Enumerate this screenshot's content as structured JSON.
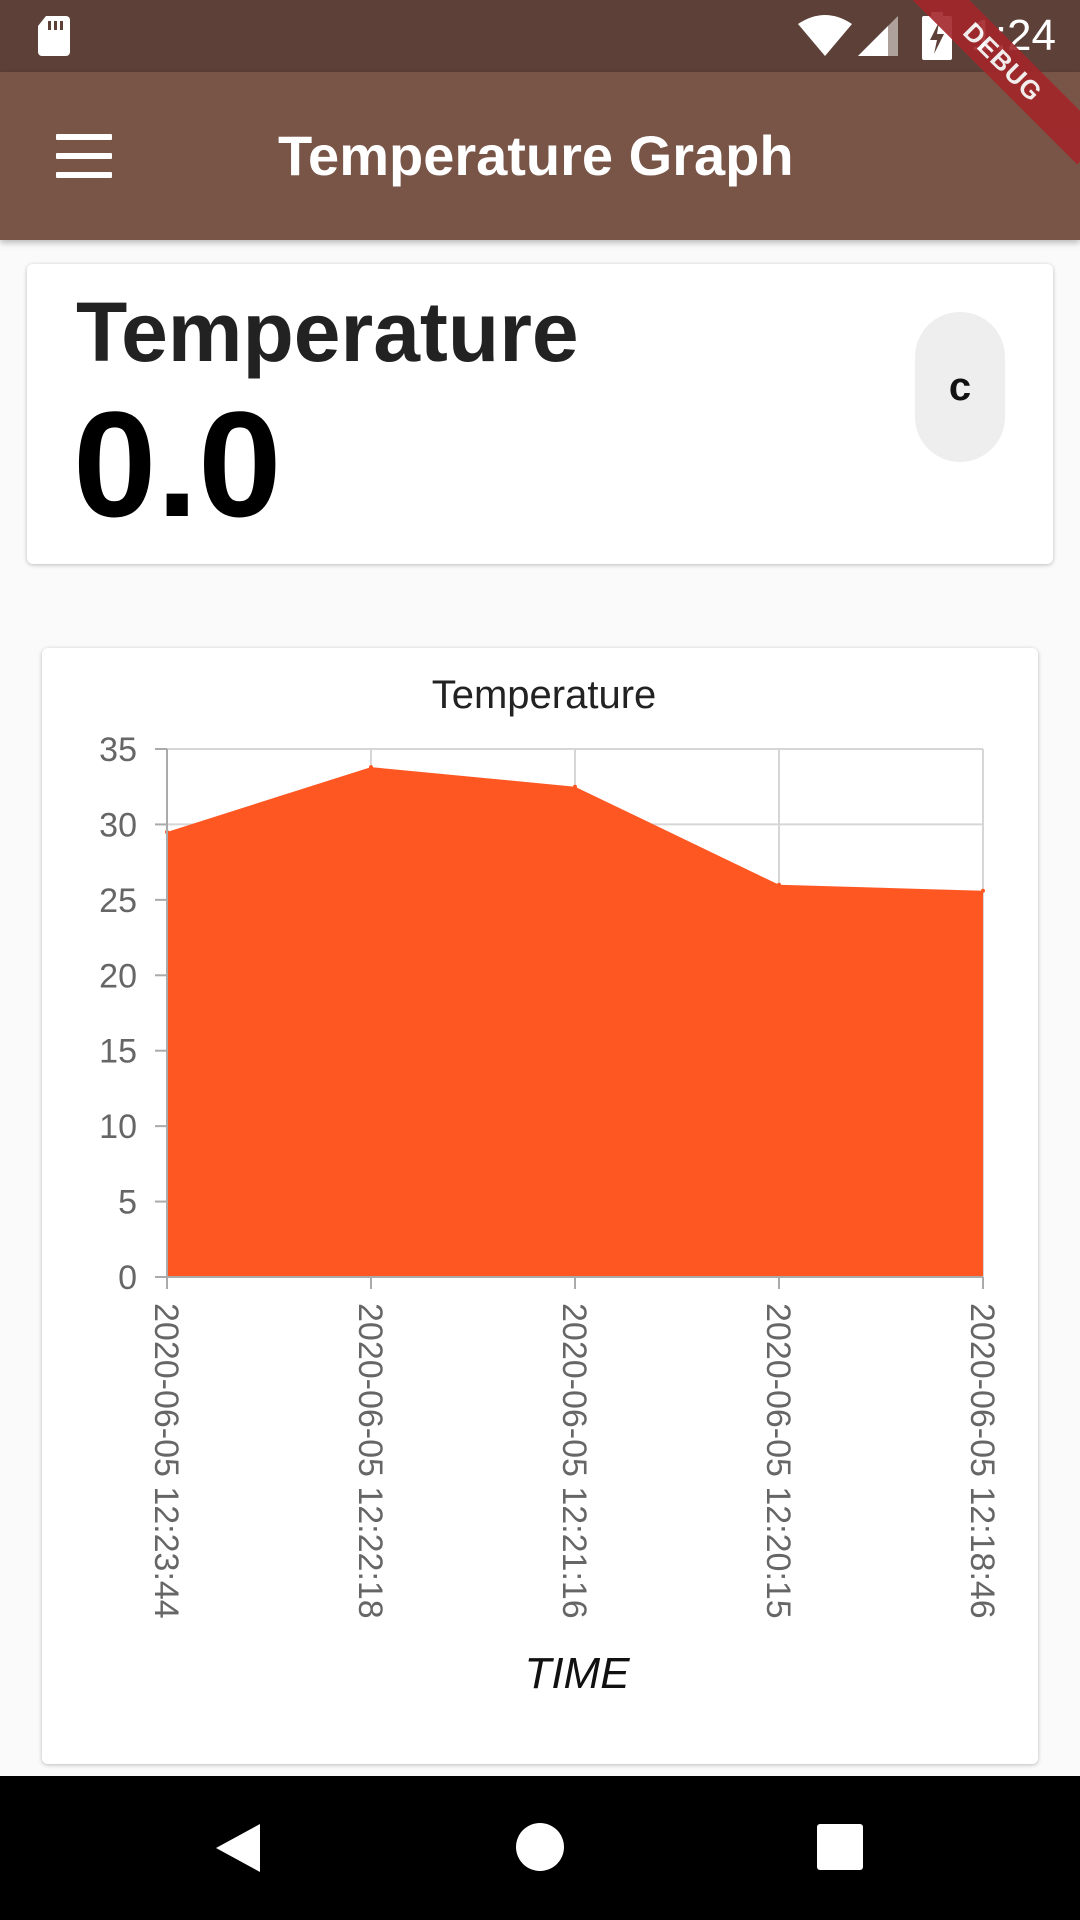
{
  "status_bar": {
    "time": "1:24",
    "icons": [
      "sd-card-icon",
      "wifi-icon",
      "cell-signal-icon",
      "battery-charging-icon"
    ]
  },
  "app_bar": {
    "title": "Temperature Graph",
    "menu_icon": "hamburger-menu-icon",
    "debug_banner": "DEBUG",
    "color": "#795548",
    "status_color": "#5d4037"
  },
  "temperature_card": {
    "label": "Temperature",
    "value": "0.0",
    "unit_button": "c"
  },
  "chart_data": {
    "type": "area",
    "title": "Temperature",
    "xlabel": "TIME",
    "ylabel": "",
    "categories": [
      "2020-06-05 12:23:44",
      "2020-06-05 12:22:18",
      "2020-06-05 12:21:16",
      "2020-06-05 12:20:15",
      "2020-06-05 12:18:46"
    ],
    "values": [
      29.5,
      33.8,
      32.5,
      26.0,
      25.6
    ],
    "ylim": [
      0,
      35
    ],
    "yticks": [
      0,
      5,
      10,
      15,
      20,
      25,
      30,
      35
    ],
    "grid": true,
    "fill_color": "#ff5722"
  },
  "nav_bar": {
    "back": "back-icon",
    "home": "home-icon",
    "recents": "recents-icon"
  }
}
